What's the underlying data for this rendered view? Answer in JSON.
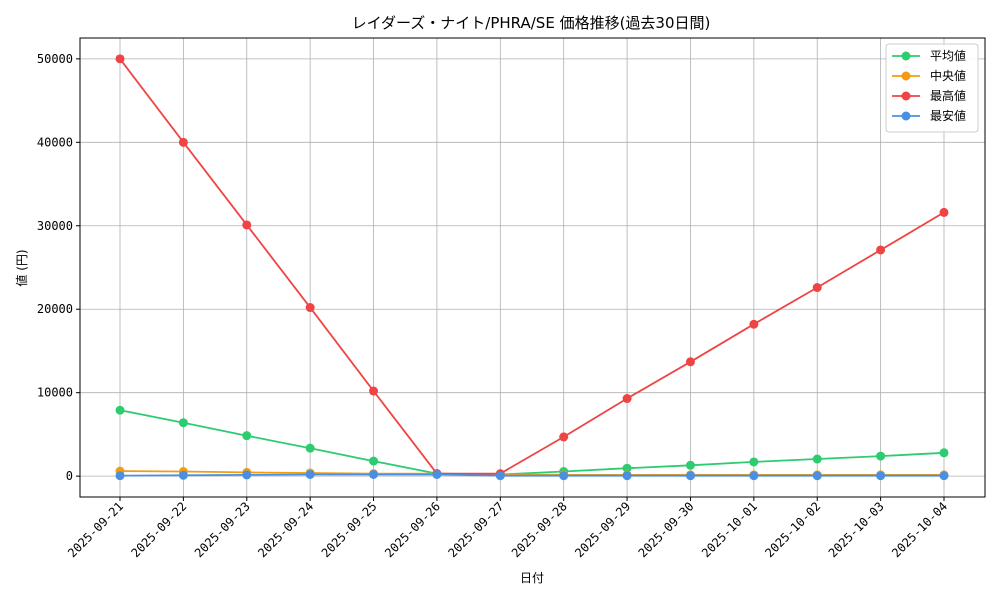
{
  "chart_data": {
    "type": "line",
    "title": "レイダーズ・ナイト/PHRA/SE 価格推移(過去30日間)",
    "xlabel": "日付",
    "ylabel": "値 (円)",
    "ylim": [
      -2500,
      52500
    ],
    "yticks": [
      0,
      10000,
      20000,
      30000,
      40000,
      50000
    ],
    "ytick_labels": [
      "0",
      "10000",
      "20000",
      "30000",
      "40000",
      "50000"
    ],
    "grid": true,
    "legend_position": "top-right",
    "x": [
      "2025-09-21",
      "2025-09-22",
      "2025-09-23",
      "2025-09-24",
      "2025-09-25",
      "2025-09-26",
      "2025-09-27",
      "2025-09-28",
      "2025-09-29",
      "2025-09-30",
      "2025-10-01",
      "2025-10-02",
      "2025-10-03",
      "2025-10-04"
    ],
    "series": [
      {
        "name": "平均値",
        "color": "#2ecc71",
        "values": [
          7900,
          6400,
          4850,
          3350,
          1800,
          300,
          200,
          550,
          950,
          1300,
          1700,
          2050,
          2400,
          2800
        ]
      },
      {
        "name": "中央値",
        "color": "#f39c12",
        "values": [
          600,
          550,
          450,
          380,
          300,
          300,
          200,
          150,
          150,
          150,
          150,
          150,
          150,
          150
        ]
      },
      {
        "name": "最高値",
        "color": "#ef4444",
        "values": [
          50000,
          40000,
          30100,
          20200,
          10200,
          300,
          300,
          4700,
          9300,
          13700,
          18200,
          22600,
          27100,
          31600
        ]
      },
      {
        "name": "最安値",
        "color": "#4a90e2",
        "values": [
          50,
          100,
          150,
          200,
          200,
          200,
          50,
          50,
          50,
          50,
          50,
          50,
          50,
          50
        ]
      }
    ]
  }
}
